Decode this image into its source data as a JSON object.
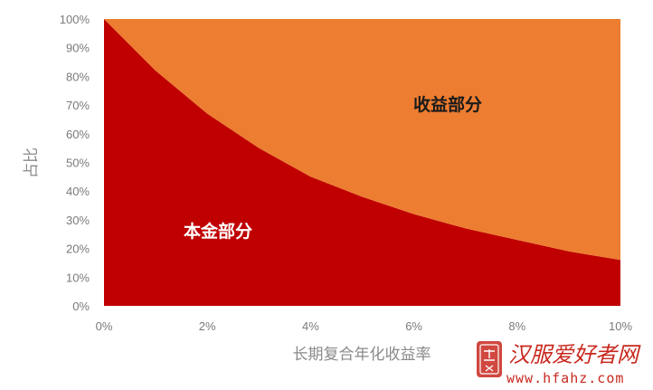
{
  "chart_data": {
    "type": "area",
    "x": [
      0,
      1,
      2,
      3,
      4,
      5,
      6,
      7,
      8,
      9,
      10
    ],
    "x_tick_labels": [
      "0%",
      "2%",
      "4%",
      "6%",
      "8%",
      "10%"
    ],
    "x_tick_values": [
      0,
      2,
      4,
      6,
      8,
      10
    ],
    "xlim": [
      0,
      10
    ],
    "y_tick_labels": [
      "0%",
      "10%",
      "20%",
      "30%",
      "40%",
      "50%",
      "60%",
      "70%",
      "80%",
      "90%",
      "100%"
    ],
    "y_tick_values": [
      0,
      10,
      20,
      30,
      40,
      50,
      60,
      70,
      80,
      90,
      100
    ],
    "ylim": [
      0,
      100
    ],
    "xlabel": "长期复合年化收益率",
    "ylabel": "占比",
    "stacked": true,
    "grid": false,
    "series": [
      {
        "name": "本金部分",
        "color": "#c00000",
        "values": [
          100,
          82,
          67,
          55,
          45,
          38,
          32,
          27,
          23,
          19,
          16
        ]
      },
      {
        "name": "收益部分",
        "color": "#ed7d31",
        "values": [
          0,
          18,
          33,
          45,
          55,
          62,
          68,
          73,
          77,
          81,
          84
        ]
      }
    ]
  },
  "watermark": {
    "text": "汉服爱好者网",
    "url": "www.hfahz.com",
    "seal_icon": "seal-stamp-icon",
    "color": "#c8281e"
  }
}
